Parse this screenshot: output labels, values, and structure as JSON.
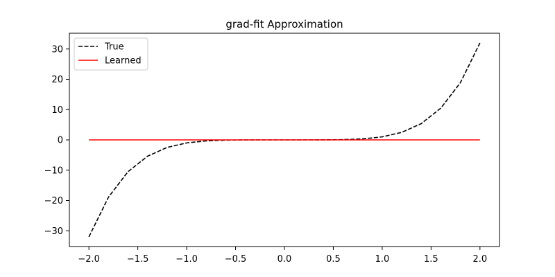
{
  "chart_data": {
    "type": "line",
    "title": "grad-fit Approximation",
    "xlabel": "",
    "ylabel": "",
    "xlim": [
      -2.2,
      2.2
    ],
    "ylim": [
      -35.2,
      35.2
    ],
    "x_ticks": [
      -2.0,
      -1.5,
      -1.0,
      -0.5,
      0.0,
      0.5,
      1.0,
      1.5,
      2.0
    ],
    "x_tick_labels": [
      "−2.0",
      "−1.5",
      "−1.0",
      "−0.5",
      "0.0",
      "0.5",
      "1.0",
      "1.5",
      "2.0"
    ],
    "y_ticks": [
      -30,
      -20,
      -10,
      0,
      10,
      20,
      30
    ],
    "y_tick_labels": [
      "−30",
      "−20",
      "−10",
      "0",
      "10",
      "20",
      "30"
    ],
    "grid": false,
    "legend_position": "top-left",
    "series": [
      {
        "name": "True",
        "color": "#000000",
        "dash": "dashed",
        "x": [
          -2.0,
          -1.8,
          -1.6,
          -1.4,
          -1.2,
          -1.0,
          -0.8,
          -0.6,
          -0.4,
          -0.2,
          0.0,
          0.2,
          0.4,
          0.6,
          0.8,
          1.0,
          1.2,
          1.4,
          1.6,
          1.8,
          2.0
        ],
        "y": [
          -32.0,
          -18.9,
          -10.49,
          -5.38,
          -2.49,
          -1.0,
          -0.33,
          -0.08,
          -0.01,
          0.0,
          0.0,
          0.0,
          0.01,
          0.08,
          0.33,
          1.0,
          2.49,
          5.38,
          10.49,
          18.9,
          32.0
        ]
      },
      {
        "name": "Learned",
        "color": "#ff0000",
        "dash": "solid",
        "x": [
          -2.0,
          2.0
        ],
        "y": [
          0.0,
          0.0
        ]
      }
    ]
  }
}
